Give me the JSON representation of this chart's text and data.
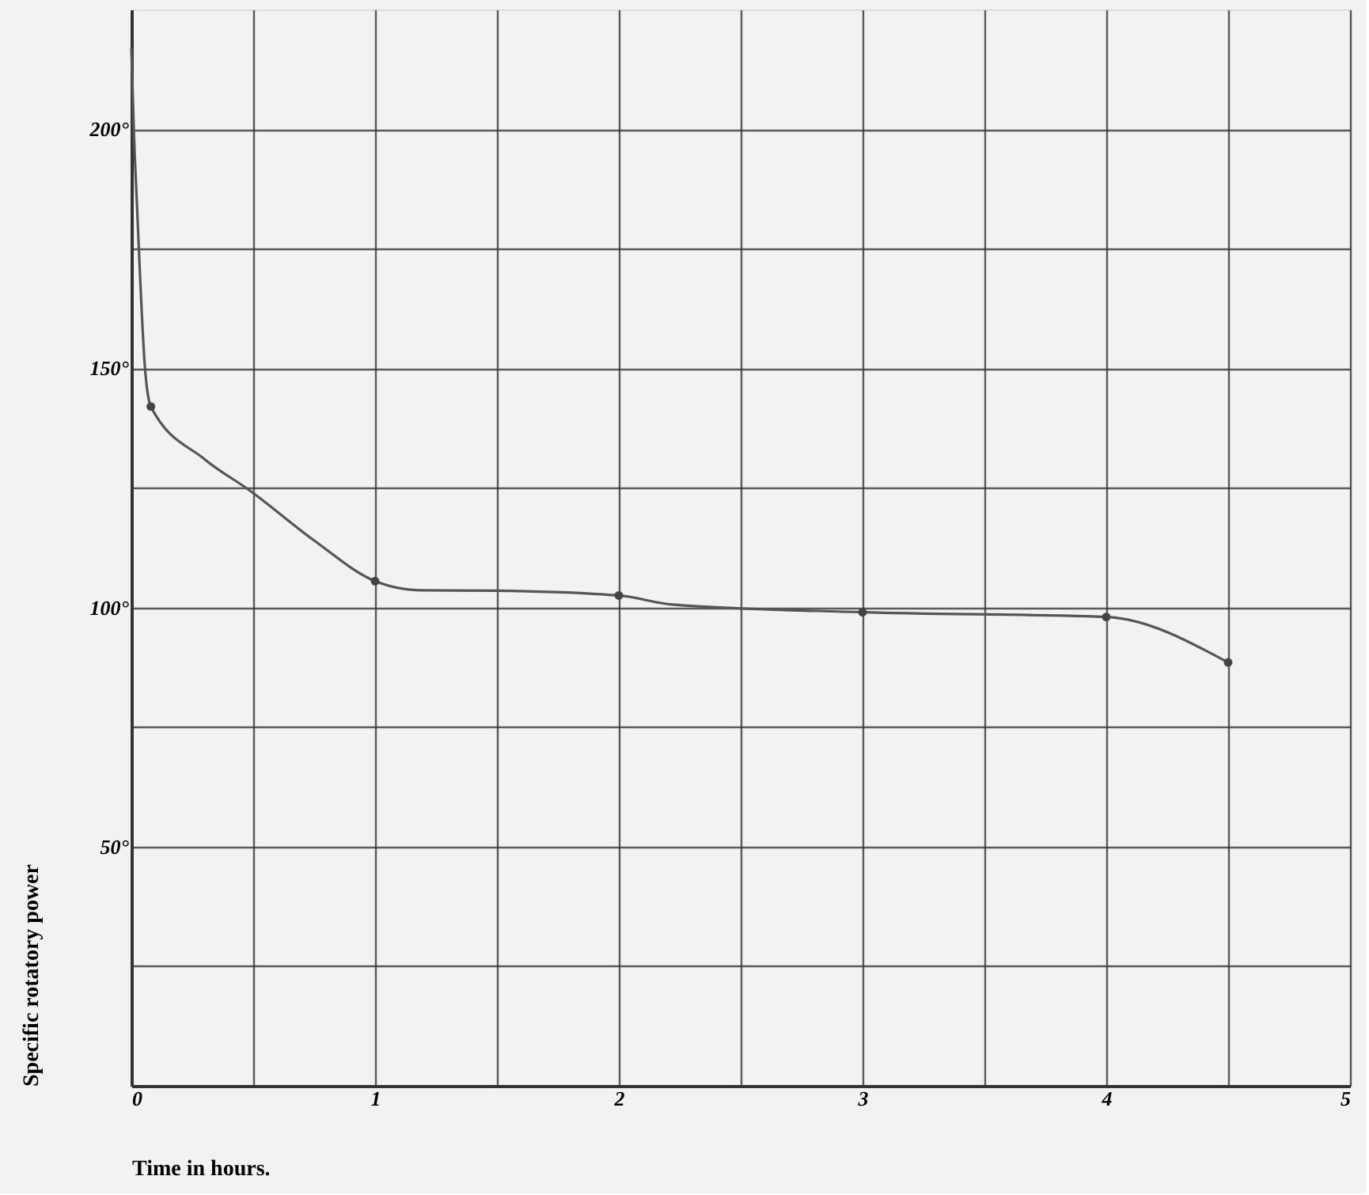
{
  "chart_data": {
    "type": "line",
    "xlabel": "Time in hours.",
    "ylabel": "Specific rotatory power",
    "xlim": [
      0,
      5
    ],
    "ylim": [
      0,
      225
    ],
    "xticks": [
      0,
      {
        "value": 0.5,
        "label": null
      },
      1,
      {
        "value": 1.5,
        "label": null
      },
      2,
      {
        "value": 2.5,
        "label": null
      },
      3,
      {
        "value": 3.5,
        "label": null
      },
      4,
      {
        "value": 4.5,
        "label": null
      },
      5
    ],
    "yticks": [
      {
        "value": 0,
        "label": null
      },
      {
        "value": 25,
        "label": null
      },
      {
        "value": 50,
        "label": "50°"
      },
      {
        "value": 75,
        "label": null
      },
      {
        "value": 100,
        "label": "100°"
      },
      {
        "value": 125,
        "label": null
      },
      {
        "value": 150,
        "label": "150°"
      },
      {
        "value": 175,
        "label": null
      },
      {
        "value": 200,
        "label": "200°"
      }
    ],
    "grid": true,
    "series": [
      {
        "color": "#555555",
        "marker": "none",
        "x": [
          0,
          0.01,
          0.024,
          0.056,
          0.08,
          0.3,
          0.49,
          0.75,
          1,
          1.18,
          1.49,
          2,
          2.22,
          3,
          4,
          4.5
        ],
        "values": [
          217,
          200,
          183,
          150,
          142,
          131,
          124.3,
          114,
          105.5,
          103.6,
          103.5,
          102.5,
          100.6,
          99,
          98,
          88.5
        ]
      },
      {
        "type": "scatter",
        "color": "#444444",
        "marker": "circle",
        "x": [
          0.08,
          1,
          2,
          3,
          4,
          4.5
        ],
        "values": [
          142,
          105.5,
          102.5,
          99,
          98,
          88.5
        ]
      }
    ]
  }
}
